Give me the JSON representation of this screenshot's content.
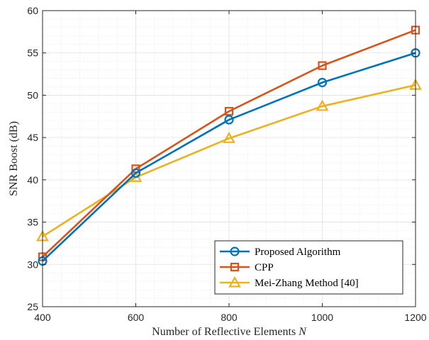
{
  "chart_data": {
    "type": "line",
    "xlabel": "Number of Reflective Elements",
    "xlabel_symbol": "N",
    "ylabel": "SNR Boost (dB)",
    "xlim": [
      400,
      1200
    ],
    "ylim": [
      25,
      60
    ],
    "xticks": [
      400,
      600,
      800,
      1000,
      1200
    ],
    "yticks": [
      25,
      30,
      35,
      40,
      45,
      50,
      55,
      60
    ],
    "grid": true,
    "minor_grid": true,
    "legend_position": "bottom-right",
    "x": [
      400,
      600,
      800,
      1000,
      1200
    ],
    "series": [
      {
        "name": "Proposed Algorithm",
        "values": [
          30.4,
          40.8,
          47.1,
          51.5,
          55.0
        ],
        "color": "#0072BD",
        "marker": "circle"
      },
      {
        "name": "CPP",
        "values": [
          30.9,
          41.3,
          48.1,
          53.5,
          57.7
        ],
        "color": "#D95319",
        "marker": "square"
      },
      {
        "name": "Mei-Zhang Method [40]",
        "values": [
          33.3,
          40.3,
          44.9,
          48.7,
          51.2
        ],
        "color": "#EDB120",
        "marker": "triangle"
      }
    ]
  }
}
